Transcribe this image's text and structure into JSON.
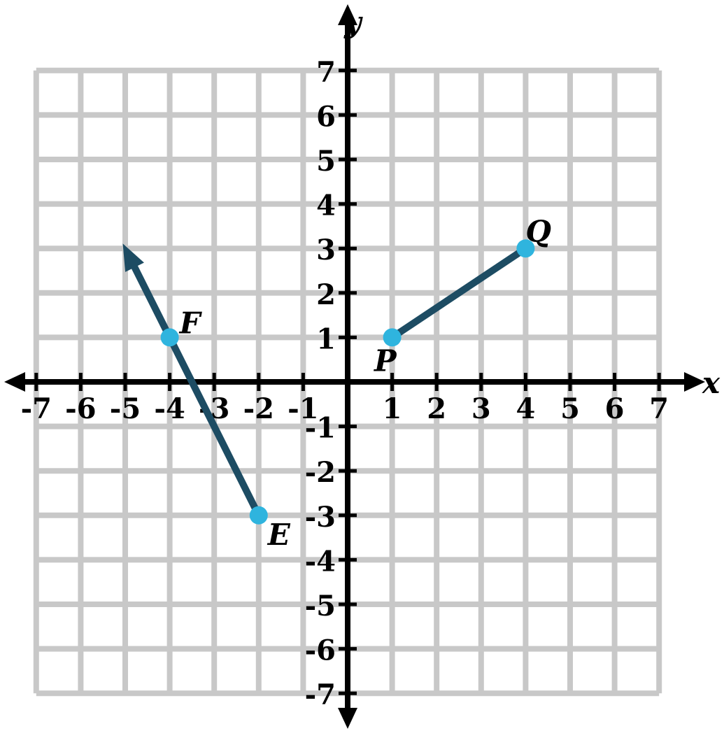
{
  "figure": {
    "background_color": "#ffffff",
    "grid_color": "#c8c8c8",
    "axis_color": "#000000",
    "line_color": "#1d4c63",
    "point_color": "#2fb4de",
    "label_color": "#000000"
  },
  "chart_data": {
    "type": "line",
    "title": "",
    "xlabel": "x",
    "ylabel": "y",
    "xlim": [
      -7,
      7
    ],
    "ylim": [
      -7,
      7
    ],
    "grid": true,
    "x_ticks": [
      -7,
      -6,
      -5,
      -4,
      -3,
      -2,
      -1,
      1,
      2,
      3,
      4,
      5,
      6,
      7
    ],
    "y_ticks": [
      -7,
      -6,
      -5,
      -4,
      -3,
      -2,
      -1,
      1,
      2,
      3,
      4,
      5,
      6,
      7
    ],
    "figures": [
      {
        "kind": "ray",
        "name": "ray-EF",
        "points": [
          {
            "label": "E",
            "x": -2,
            "y": -3,
            "label_position": "below-right"
          },
          {
            "label": "F",
            "x": -4,
            "y": 1,
            "label_position": "above-right"
          }
        ],
        "arrow_beyond_index": 1
      },
      {
        "kind": "segment",
        "name": "segment-PQ",
        "points": [
          {
            "label": "P",
            "x": 1,
            "y": 1,
            "label_position": "below-left"
          },
          {
            "label": "Q",
            "x": 4,
            "y": 3,
            "label_position": "above"
          }
        ]
      }
    ]
  }
}
